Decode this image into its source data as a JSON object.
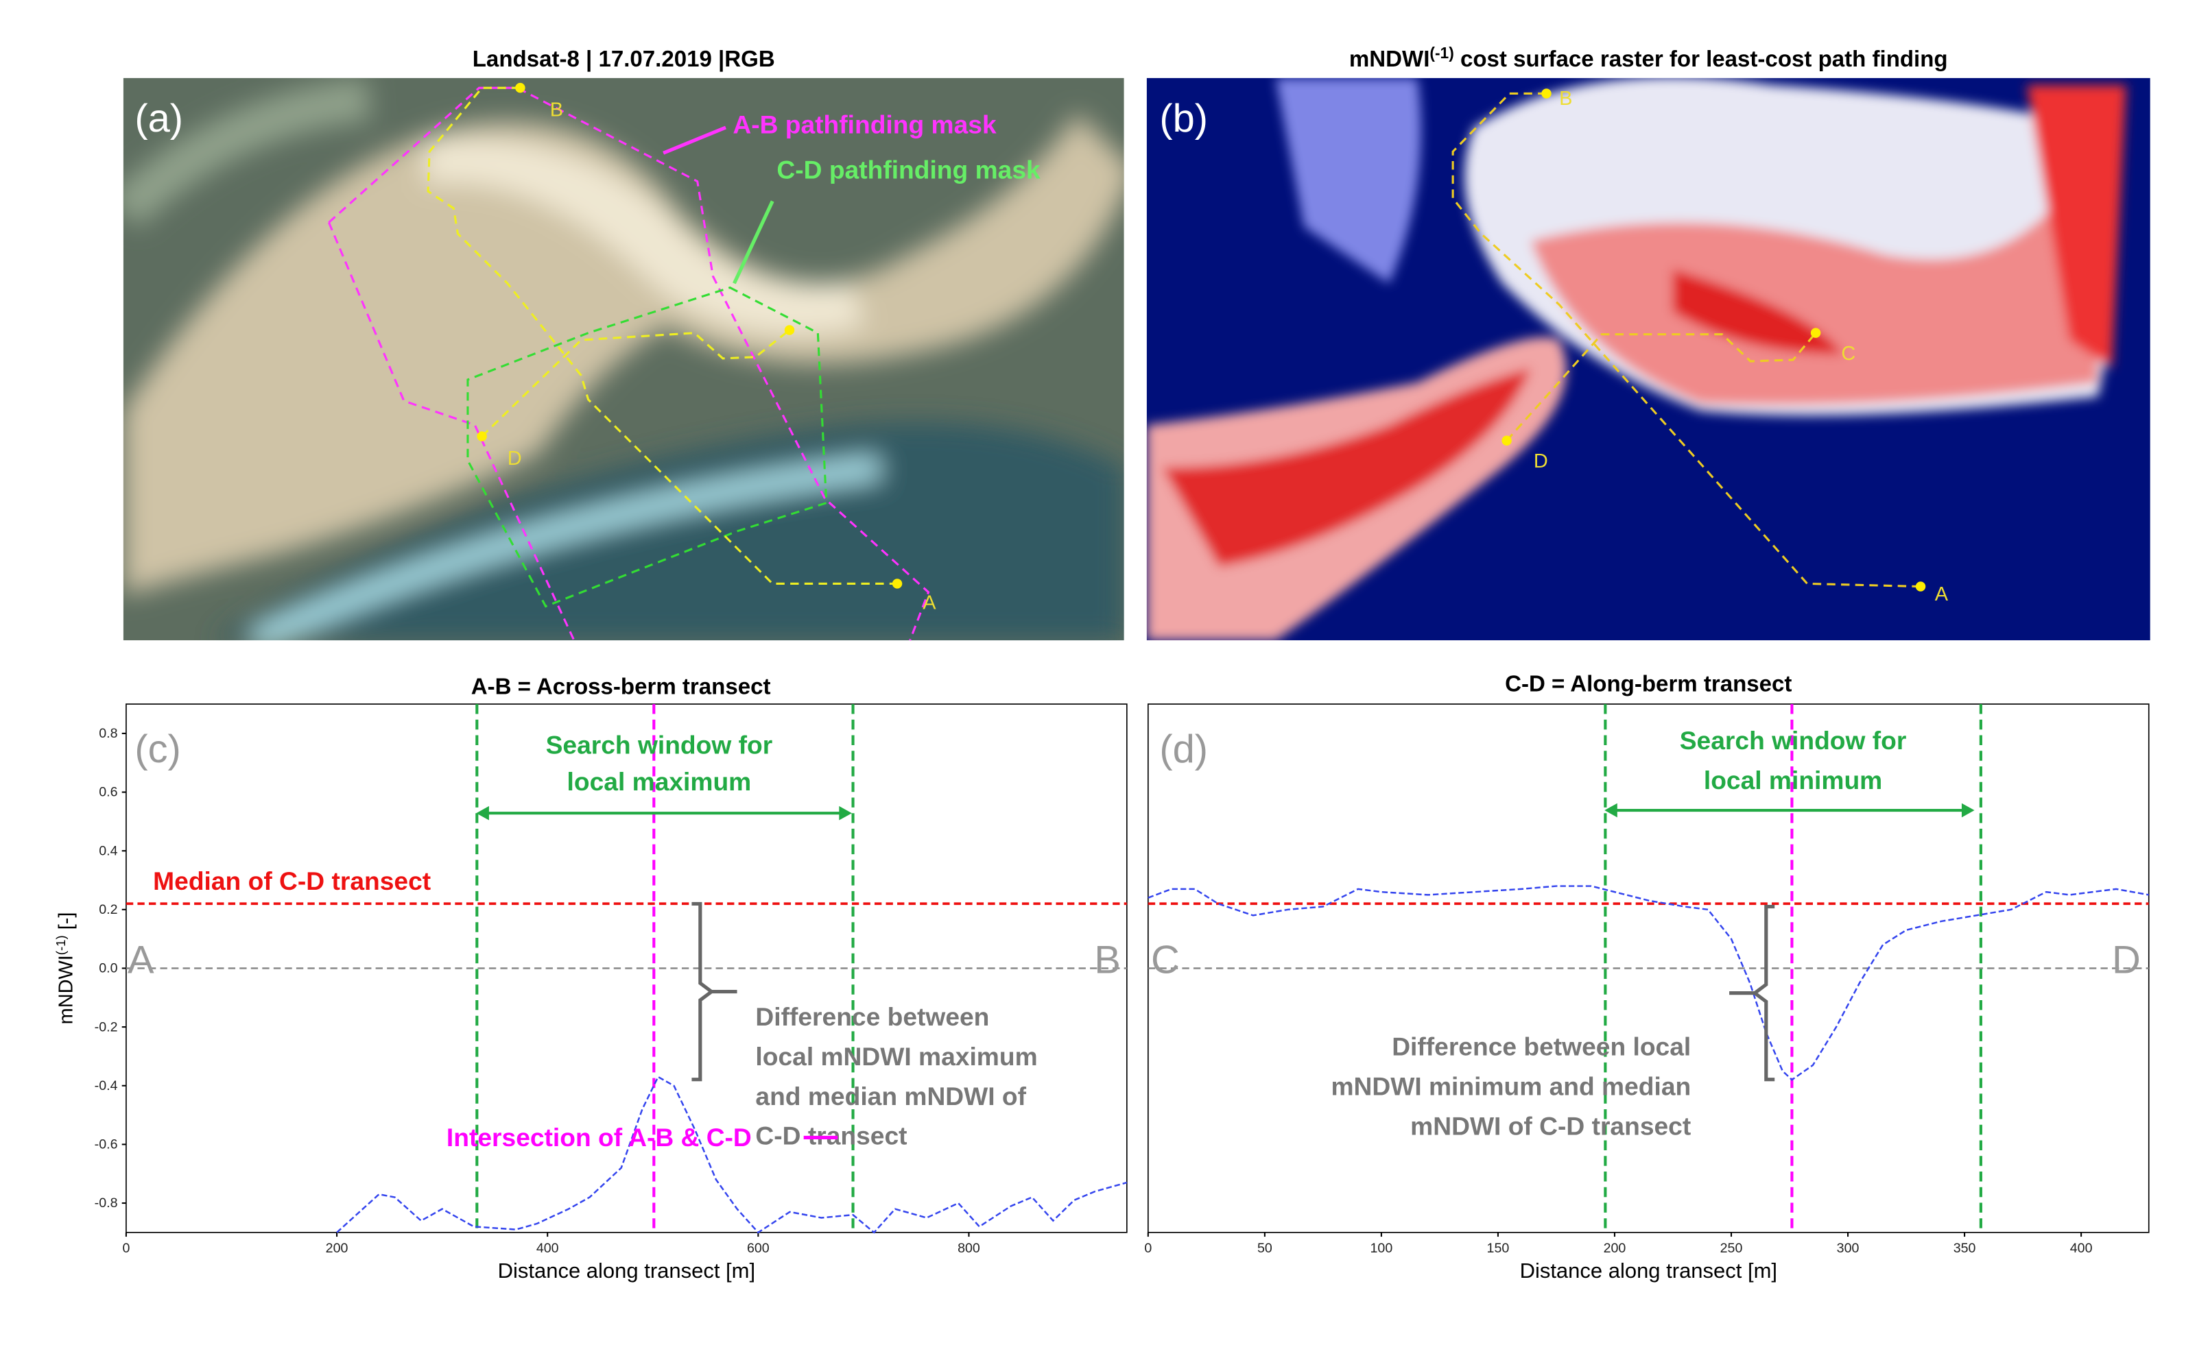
{
  "images": [
    {
      "title": "Landsat-8  | 17.07.2019 |RGB",
      "panel_label": "(a)",
      "point_labels": [
        "B",
        "D",
        "A"
      ],
      "mask_labels": [
        "A-B pathfinding mask",
        "C-D pathfinding mask"
      ]
    },
    {
      "title": "mNDWI",
      "title_superscript": "(-1)",
      "title_rest": " cost surface raster for least-cost path finding",
      "panel_label": "(b)",
      "point_labels": [
        "B",
        "C",
        "D",
        "A"
      ]
    }
  ],
  "chart_data": [
    {
      "type": "line",
      "title": "A-B = Across-berm transect",
      "xlabel": "Distance along transect [m]",
      "ylabel": "mNDWI",
      "ylabel_superscript": "(-1)",
      "ylabel_rest": " [-]",
      "xlim": [
        0,
        950
      ],
      "xticks": [
        0,
        200,
        400,
        600,
        800
      ],
      "ylim": [
        -0.9,
        0.9
      ],
      "yticks": [
        -0.8,
        -0.6,
        -0.4,
        -0.2,
        {
          "value": 0,
          "label": "0.0"
        },
        0.2,
        0.4,
        0.6,
        0.8
      ],
      "x": [
        200,
        240,
        255,
        280,
        300,
        330,
        370,
        390,
        420,
        440,
        470,
        490,
        505,
        520,
        540,
        560,
        580,
        600,
        630,
        660,
        690,
        710,
        730,
        760,
        790,
        810,
        840,
        860,
        880,
        900,
        920,
        950
      ],
      "values": [
        -0.9,
        -0.77,
        -0.78,
        -0.86,
        -0.82,
        -0.88,
        -0.89,
        -0.87,
        -0.82,
        -0.78,
        -0.68,
        -0.48,
        -0.37,
        -0.4,
        -0.55,
        -0.72,
        -0.82,
        -0.9,
        -0.83,
        -0.85,
        -0.84,
        -0.9,
        -0.82,
        -0.85,
        -0.8,
        -0.88,
        -0.81,
        -0.78,
        -0.86,
        -0.79,
        -0.76,
        -0.73
      ],
      "color": "#3344ee",
      "hlines": [
        {
          "value": 0.22,
          "color": "#ee1111",
          "label": "Median of C-D transect"
        },
        {
          "value": 0,
          "color": "#888888"
        }
      ],
      "vlines": [
        {
          "value": 333,
          "color": "#22aa44"
        },
        {
          "value": 690,
          "color": "#22aa44"
        },
        {
          "value": 501,
          "color": "#ff00ff"
        }
      ],
      "panel_label": "(c)",
      "start_label": "A",
      "end_label": "B",
      "window_label": [
        "Search window for",
        "local maximum"
      ],
      "difference_label": [
        "Difference between",
        "local mNDWI maximum",
        "and median mNDWI of",
        "C-D transect"
      ],
      "intersection_label": "Intersection of A-B & C-D"
    },
    {
      "type": "line",
      "title": "C-D = Along-berm transect",
      "xlabel": "Distance along transect [m]",
      "xlim": [
        0,
        429
      ],
      "xticks": [
        0,
        50,
        100,
        150,
        200,
        250,
        300,
        350,
        400
      ],
      "ylim": [
        -0.9,
        0.9
      ],
      "x": [
        0,
        10,
        20,
        30,
        45,
        60,
        75,
        90,
        100,
        120,
        140,
        160,
        175,
        190,
        200,
        215,
        230,
        240,
        250,
        258,
        265,
        272,
        276,
        285,
        295,
        305,
        315,
        325,
        340,
        355,
        370,
        385,
        395,
        405,
        415,
        429
      ],
      "values": [
        0.24,
        0.27,
        0.27,
        0.22,
        0.18,
        0.2,
        0.21,
        0.27,
        0.26,
        0.25,
        0.26,
        0.27,
        0.28,
        0.28,
        0.26,
        0.23,
        0.21,
        0.2,
        0.1,
        -0.05,
        -0.22,
        -0.35,
        -0.38,
        -0.33,
        -0.2,
        -0.05,
        0.08,
        0.13,
        0.16,
        0.18,
        0.2,
        0.26,
        0.25,
        0.26,
        0.27,
        0.25
      ],
      "color": "#3344ee",
      "hlines": [
        {
          "value": 0.22,
          "color": "#ee1111"
        },
        {
          "value": 0,
          "color": "#888888"
        }
      ],
      "vlines": [
        {
          "value": 196,
          "color": "#22aa44"
        },
        {
          "value": 357,
          "color": "#22aa44"
        },
        {
          "value": 276,
          "color": "#ff00ff"
        }
      ],
      "panel_label": "(d)",
      "start_label": "C",
      "end_label": "D",
      "window_label": [
        "Search window for",
        "local minimum"
      ],
      "difference_label": [
        "Difference between local",
        "mNDWI minimum and median",
        "mNDWI of C-D transect"
      ]
    }
  ]
}
